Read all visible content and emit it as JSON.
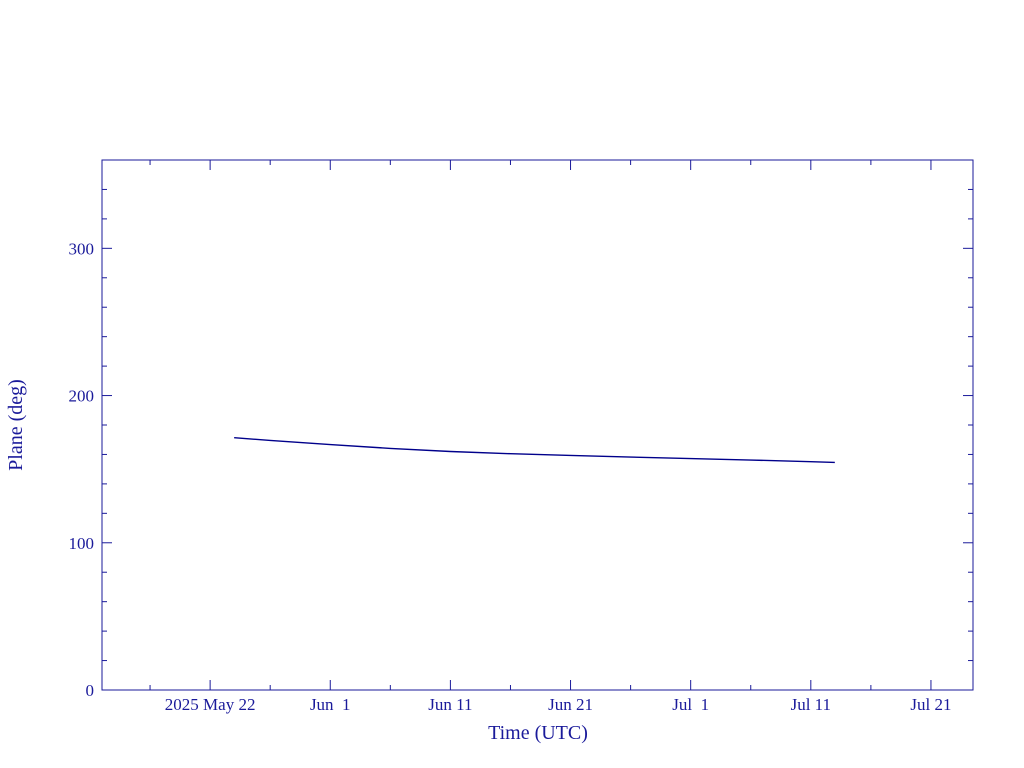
{
  "chart_data": {
    "type": "line",
    "xlabel": "Time (UTC)",
    "ylabel": "Plane (deg)",
    "x": [
      "2025-05-24",
      "2025-05-27",
      "2025-06-01",
      "2025-06-06",
      "2025-06-11",
      "2025-06-16",
      "2025-06-21",
      "2025-06-26",
      "2025-07-01",
      "2025-07-06",
      "2025-07-11",
      "2025-07-13"
    ],
    "series": [
      {
        "color": "#00008b",
        "values": [
          171.4,
          169.5,
          166.7,
          164.1,
          162.0,
          160.5,
          159.3,
          158.2,
          157.2,
          156.2,
          155.1,
          154.6
        ]
      }
    ],
    "xlim": [
      "2025-05-13",
      "2025-07-24T12:00Z"
    ],
    "xticks": [
      {
        "value": "2025-05-22",
        "label": "2025 May 22"
      },
      {
        "value": "2025-06-01",
        "label": "Jun  1"
      },
      {
        "value": "2025-06-11",
        "label": "Jun 11"
      },
      {
        "value": "2025-06-21",
        "label": "Jun 21"
      },
      {
        "value": "2025-07-01",
        "label": "Jul  1"
      },
      {
        "value": "2025-07-11",
        "label": "Jul 11"
      },
      {
        "value": "2025-07-21",
        "label": "Jul 21"
      }
    ],
    "xminorticks": [
      "2025-05-17",
      "2025-05-27",
      "2025-06-06",
      "2025-06-16",
      "2025-06-26",
      "2025-07-06",
      "2025-07-16"
    ],
    "ylim": [
      0,
      360
    ],
    "yticks": [
      0,
      100,
      200,
      300
    ],
    "yminorticks": [
      20,
      40,
      60,
      80,
      120,
      140,
      160,
      180,
      220,
      240,
      260,
      280,
      320,
      340
    ],
    "grid": false
  }
}
